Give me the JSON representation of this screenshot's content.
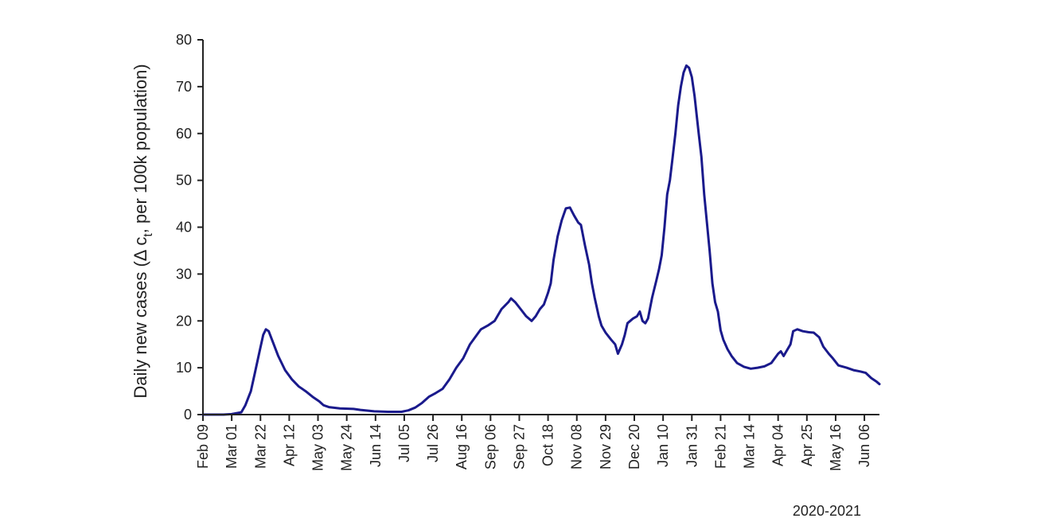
{
  "chart_data": {
    "type": "line",
    "xlabel": "2020-2021",
    "ylabel_main": "Daily new cases (Δ c",
    "ylabel_sub": "t",
    "ylabel_tail": ", per 100k population)",
    "ylim": [
      0,
      80
    ],
    "yticks": [
      0,
      10,
      20,
      30,
      40,
      50,
      60,
      70,
      80
    ],
    "x_domain_days": [
      0,
      494
    ],
    "xticks": [
      {
        "day": 0,
        "label": "Feb 09"
      },
      {
        "day": 21,
        "label": "Mar 01"
      },
      {
        "day": 42,
        "label": "Mar 22"
      },
      {
        "day": 63,
        "label": "Apr 12"
      },
      {
        "day": 84,
        "label": "May 03"
      },
      {
        "day": 105,
        "label": "May 24"
      },
      {
        "day": 126,
        "label": "Jun 14"
      },
      {
        "day": 147,
        "label": "Jul 05"
      },
      {
        "day": 168,
        "label": "Jul 26"
      },
      {
        "day": 189,
        "label": "Aug 16"
      },
      {
        "day": 210,
        "label": "Sep 06"
      },
      {
        "day": 231,
        "label": "Sep 27"
      },
      {
        "day": 252,
        "label": "Oct 18"
      },
      {
        "day": 273,
        "label": "Nov 08"
      },
      {
        "day": 294,
        "label": "Nov 29"
      },
      {
        "day": 315,
        "label": "Dec 20"
      },
      {
        "day": 336,
        "label": "Jan 10"
      },
      {
        "day": 357,
        "label": "Jan 31"
      },
      {
        "day": 378,
        "label": "Feb 21"
      },
      {
        "day": 399,
        "label": "Mar 14"
      },
      {
        "day": 420,
        "label": "Apr 04"
      },
      {
        "day": 441,
        "label": "Apr 25"
      },
      {
        "day": 462,
        "label": "May 16"
      },
      {
        "day": 483,
        "label": "Jun 06"
      }
    ],
    "grid": false,
    "series": [
      {
        "color": "#1a1a8c",
        "points": [
          [
            0,
            0
          ],
          [
            15,
            0
          ],
          [
            21,
            0.1
          ],
          [
            28,
            0.5
          ],
          [
            31,
            2
          ],
          [
            35,
            5
          ],
          [
            38,
            9
          ],
          [
            41,
            13
          ],
          [
            44,
            17
          ],
          [
            46,
            18.2
          ],
          [
            48,
            17.8
          ],
          [
            51,
            15.5
          ],
          [
            55,
            12.5
          ],
          [
            60,
            9.5
          ],
          [
            65,
            7.5
          ],
          [
            70,
            6
          ],
          [
            75,
            5
          ],
          [
            80,
            3.8
          ],
          [
            85,
            2.8
          ],
          [
            88,
            2
          ],
          [
            92,
            1.6
          ],
          [
            100,
            1.3
          ],
          [
            110,
            1.2
          ],
          [
            115,
            1
          ],
          [
            125,
            0.7
          ],
          [
            135,
            0.6
          ],
          [
            145,
            0.6
          ],
          [
            150,
            0.9
          ],
          [
            155,
            1.5
          ],
          [
            160,
            2.5
          ],
          [
            165,
            3.8
          ],
          [
            170,
            4.6
          ],
          [
            175,
            5.5
          ],
          [
            180,
            7.5
          ],
          [
            185,
            10
          ],
          [
            190,
            12
          ],
          [
            195,
            15
          ],
          [
            200,
            17
          ],
          [
            203,
            18.2
          ],
          [
            208,
            19
          ],
          [
            213,
            20
          ],
          [
            218,
            22.5
          ],
          [
            223,
            24
          ],
          [
            225,
            24.8
          ],
          [
            228,
            24
          ],
          [
            232,
            22.5
          ],
          [
            236,
            21
          ],
          [
            240,
            20
          ],
          [
            243,
            21
          ],
          [
            246,
            22.5
          ],
          [
            249,
            23.5
          ],
          [
            252,
            26
          ],
          [
            254,
            28
          ],
          [
            256,
            33
          ],
          [
            259,
            38
          ],
          [
            262,
            41.5
          ],
          [
            265,
            44
          ],
          [
            268,
            44.2
          ],
          [
            271,
            42.5
          ],
          [
            274,
            41
          ],
          [
            276,
            40.5
          ],
          [
            279,
            36
          ],
          [
            282,
            32
          ],
          [
            284,
            28
          ],
          [
            286,
            25
          ],
          [
            289,
            21
          ],
          [
            291,
            19
          ],
          [
            294,
            17.5
          ],
          [
            298,
            16
          ],
          [
            301,
            15
          ],
          [
            303,
            13
          ],
          [
            306,
            15
          ],
          [
            308,
            17
          ],
          [
            310,
            19.5
          ],
          [
            314,
            20.5
          ],
          [
            317,
            21
          ],
          [
            319,
            22
          ],
          [
            321,
            20
          ],
          [
            323,
            19.5
          ],
          [
            325,
            20.5
          ],
          [
            328,
            25
          ],
          [
            331,
            28.5
          ],
          [
            333,
            31
          ],
          [
            335,
            34
          ],
          [
            337,
            40
          ],
          [
            339,
            47
          ],
          [
            341,
            50
          ],
          [
            343,
            55
          ],
          [
            345,
            60
          ],
          [
            347,
            66
          ],
          [
            349,
            70
          ],
          [
            351,
            73
          ],
          [
            353,
            74.5
          ],
          [
            355,
            74
          ],
          [
            357,
            72
          ],
          [
            359,
            68
          ],
          [
            362,
            60
          ],
          [
            364,
            55
          ],
          [
            366,
            47
          ],
          [
            368,
            41
          ],
          [
            370,
            35
          ],
          [
            372,
            28
          ],
          [
            374,
            24
          ],
          [
            376,
            22
          ],
          [
            378,
            18
          ],
          [
            380,
            16
          ],
          [
            383,
            14
          ],
          [
            386,
            12.5
          ],
          [
            390,
            11
          ],
          [
            395,
            10.2
          ],
          [
            400,
            9.8
          ],
          [
            405,
            10
          ],
          [
            410,
            10.3
          ],
          [
            415,
            11
          ],
          [
            420,
            13
          ],
          [
            422,
            13.5
          ],
          [
            424,
            12.5
          ],
          [
            426,
            13.5
          ],
          [
            429,
            15
          ],
          [
            431,
            17.8
          ],
          [
            434,
            18.2
          ],
          [
            438,
            17.8
          ],
          [
            442,
            17.6
          ],
          [
            446,
            17.5
          ],
          [
            450,
            16.5
          ],
          [
            453,
            14.5
          ],
          [
            457,
            13
          ],
          [
            460,
            12
          ],
          [
            464,
            10.5
          ],
          [
            470,
            10
          ],
          [
            475,
            9.5
          ],
          [
            480,
            9.2
          ],
          [
            484,
            8.9
          ],
          [
            488,
            7.8
          ],
          [
            492,
            7
          ],
          [
            494,
            6.5
          ]
        ]
      }
    ]
  }
}
